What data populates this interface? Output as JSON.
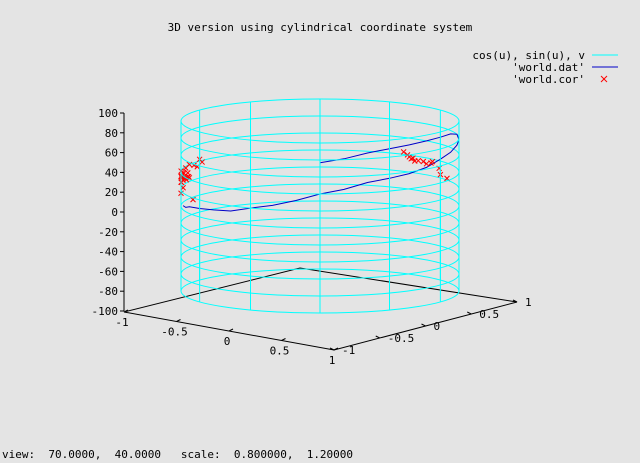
{
  "chart_data": {
    "type": "line",
    "title": "3D version using cylindrical coordinate system",
    "legend": {
      "placement": "top-right",
      "entries": [
        {
          "label": "cos(u), sin(u), v",
          "color": "#00ffff",
          "style": "line"
        },
        {
          "label": "'world.dat'",
          "color": "#0000c8",
          "style": "line"
        },
        {
          "label": "'world.cor'",
          "color": "#ff0000",
          "style": "points-x"
        }
      ]
    },
    "z_axis": {
      "range": [
        -100,
        100
      ],
      "ticks": [
        -100,
        -80,
        -60,
        -40,
        -20,
        0,
        20,
        40,
        60,
        80,
        100
      ]
    },
    "x_axis": {
      "range": [
        -1,
        1
      ],
      "tick_labels": [
        "-1",
        "-0.5",
        "0",
        "0.5",
        "1"
      ]
    },
    "y_axis": {
      "range": [
        -1,
        1
      ],
      "tick_labels": [
        "1",
        "0.5",
        "0",
        "-0.5",
        "-1"
      ]
    },
    "view": {
      "rot_x": 70.0,
      "rot_z": 40.0,
      "scale": 0.8,
      "scale_z": 1.2
    },
    "cylinder": {
      "radius": 1,
      "latitudes": [
        -100,
        -80,
        -60,
        -40,
        -20,
        0,
        20,
        40,
        60,
        80,
        100
      ],
      "meridian_count": 12
    },
    "series": [
      {
        "name": "cos(u), sin(u), v",
        "type": "surface-grid",
        "color": "#00ffff"
      },
      {
        "name": "'world.dat'",
        "type": "line",
        "color": "#0000c8",
        "points": [
          [
            -80,
            5
          ],
          [
            -75,
            5
          ],
          [
            -70,
            8
          ],
          [
            -60,
            10
          ],
          [
            -50,
            12
          ],
          [
            -40,
            14
          ],
          [
            -30,
            20
          ],
          [
            -20,
            25
          ],
          [
            -10,
            32
          ],
          [
            0,
            40
          ],
          [
            10,
            45
          ],
          [
            20,
            52
          ],
          [
            30,
            55
          ],
          [
            40,
            58
          ],
          [
            50,
            62
          ],
          [
            60,
            68
          ],
          [
            70,
            72
          ],
          [
            80,
            76
          ],
          [
            90,
            78
          ],
          [
            100,
            80
          ],
          [
            110,
            76
          ],
          [
            120,
            68
          ],
          [
            130,
            60
          ],
          [
            140,
            52
          ],
          [
            150,
            45
          ],
          [
            160,
            38
          ],
          [
            170,
            30
          ],
          [
            180,
            25
          ]
        ]
      },
      {
        "name": "'world.cor'",
        "type": "points",
        "color": "#ff0000",
        "points": [
          [
            -75,
            40
          ],
          [
            -70,
            42
          ],
          [
            -74,
            38
          ],
          [
            -78,
            44
          ],
          [
            -72,
            47
          ],
          [
            -80,
            35
          ],
          [
            -85,
            30
          ],
          [
            -90,
            28
          ],
          [
            -95,
            32
          ],
          [
            -100,
            35
          ],
          [
            -105,
            38
          ],
          [
            -110,
            40
          ],
          [
            -115,
            37
          ],
          [
            -118,
            34
          ],
          [
            -122,
            38
          ],
          [
            -120,
            42
          ],
          [
            -88,
            42
          ],
          [
            -84,
            38
          ],
          [
            -80,
            26
          ],
          [
            -96,
            30
          ],
          [
            -90,
            35
          ],
          [
            -76,
            39
          ],
          [
            -73,
            41
          ],
          [
            -71,
            43
          ],
          [
            135,
            35
          ],
          [
            139,
            36
          ],
          [
            140,
            38
          ],
          [
            137,
            34
          ],
          [
            130,
            33
          ],
          [
            132,
            35
          ],
          [
            141,
            40
          ],
          [
            143,
            43
          ],
          [
            138,
            37
          ],
          [
            126,
            37
          ],
          [
            127,
            35
          ],
          [
            121,
            31
          ],
          [
            114,
            22
          ],
          [
            120,
            24
          ],
          [
            -66,
            18
          ],
          [
            -90,
            15
          ]
        ]
      }
    ]
  },
  "status": {
    "view_label": "view:",
    "view_values": "70.0000,  40.0000",
    "scale_label": "scale:",
    "scale_values": "0.800000,  1.20000"
  }
}
